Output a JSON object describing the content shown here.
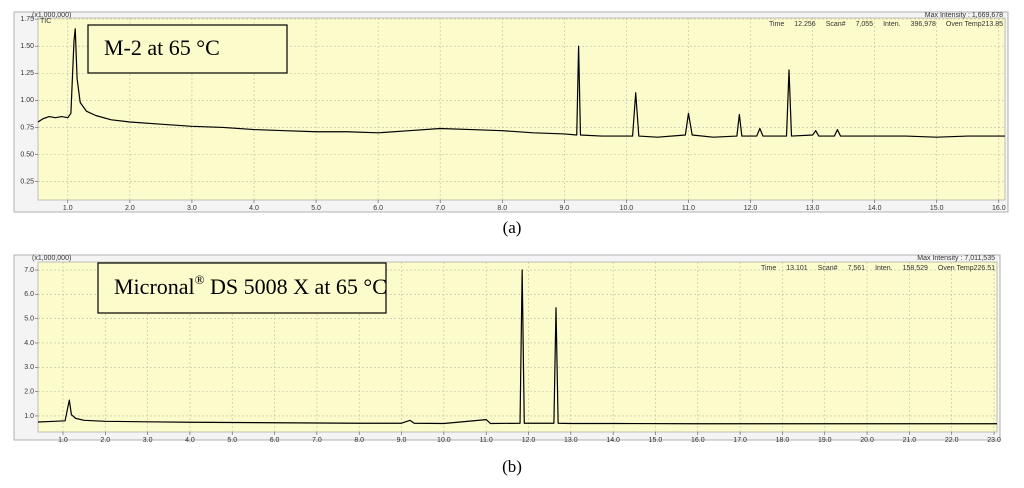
{
  "chart_data": [
    {
      "type": "line",
      "y_multiplier": "(x1,000,000)",
      "signal": "TIC",
      "max_intensity": "Max Intensity : 1,669,678",
      "status": [
        "Time",
        "12.256",
        "Scan#",
        "7,055",
        "Inten.",
        "396,978",
        "Oven Temp213.85"
      ],
      "annotation": [
        "M-2 at 65 °C"
      ],
      "caption": "(a)",
      "color": "#000000",
      "grid": true,
      "xlim": [
        0.52,
        16.1
      ],
      "ylim": [
        0.08,
        1.76
      ],
      "xticks": [
        {
          "value": 1,
          "label": "1.0"
        },
        {
          "value": 2,
          "label": "2.0"
        },
        {
          "value": 3,
          "label": "3.0"
        },
        {
          "value": 4,
          "label": "4.0"
        },
        {
          "value": 5,
          "label": "5.0"
        },
        {
          "value": 6,
          "label": "6.0"
        },
        {
          "value": 7,
          "label": "7.0"
        },
        {
          "value": 8,
          "label": "8.0"
        },
        {
          "value": 9,
          "label": "9.0"
        },
        {
          "value": 10,
          "label": "10.0"
        },
        {
          "value": 11,
          "label": "11.0"
        },
        {
          "value": 12,
          "label": "12.0"
        },
        {
          "value": 13,
          "label": "13.0"
        },
        {
          "value": 14,
          "label": "14.0"
        },
        {
          "value": 15,
          "label": "15.0"
        },
        {
          "value": 16,
          "label": "16.0"
        }
      ],
      "yticks": [
        0.25,
        {
          "value": 0.5,
          "label": "0.50"
        },
        0.75,
        {
          "value": 1,
          "label": "1.00"
        },
        1.25,
        {
          "value": 1.5,
          "label": "1.50"
        },
        1.75
      ],
      "x": [
        0.52,
        0.6,
        0.7,
        0.8,
        0.9,
        1.0,
        1.05,
        1.1,
        1.12,
        1.15,
        1.2,
        1.3,
        1.45,
        1.7,
        2.0,
        2.5,
        3.0,
        3.5,
        4.0,
        4.5,
        5.0,
        5.5,
        6.0,
        6.5,
        7.0,
        7.5,
        8.0,
        8.5,
        9.0,
        9.2,
        9.23,
        9.26,
        9.6,
        10.1,
        10.15,
        10.2,
        10.5,
        10.95,
        11.0,
        11.06,
        11.4,
        11.78,
        11.82,
        11.86,
        12.1,
        12.15,
        12.2,
        12.58,
        12.62,
        12.66,
        13.0,
        13.05,
        13.1,
        13.35,
        13.4,
        13.45,
        14.0,
        14.5,
        15.0,
        15.5,
        16.1
      ],
      "values": [
        0.8,
        0.83,
        0.85,
        0.84,
        0.85,
        0.84,
        0.88,
        1.55,
        1.66,
        1.2,
        0.98,
        0.9,
        0.86,
        0.82,
        0.8,
        0.78,
        0.76,
        0.75,
        0.73,
        0.72,
        0.71,
        0.71,
        0.7,
        0.72,
        0.74,
        0.73,
        0.72,
        0.7,
        0.69,
        0.68,
        1.5,
        0.68,
        0.67,
        0.67,
        1.07,
        0.67,
        0.66,
        0.68,
        0.88,
        0.68,
        0.66,
        0.67,
        0.87,
        0.67,
        0.67,
        0.74,
        0.67,
        0.67,
        1.28,
        0.67,
        0.68,
        0.72,
        0.67,
        0.67,
        0.73,
        0.67,
        0.67,
        0.67,
        0.66,
        0.67,
        0.67
      ]
    },
    {
      "type": "line",
      "y_multiplier": "(x1,000,000)",
      "max_intensity": "Max Intensity : 7,011,535",
      "status": [
        "Time",
        "13.101",
        "Scan#",
        "7,561",
        "Inten.",
        "158,529",
        "Oven Temp226.51"
      ],
      "annotation": [
        "Micronal",
        "®",
        " DS 5008 X at 65 °C"
      ],
      "caption": "(b)",
      "color": "#000000",
      "grid": true,
      "xlim": [
        0.41,
        23.07
      ],
      "ylim": [
        0.34,
        7.33
      ],
      "xticks": [
        {
          "value": 1,
          "label": "1.0"
        },
        {
          "value": 2,
          "label": "2.0"
        },
        {
          "value": 3,
          "label": "3.0"
        },
        {
          "value": 4,
          "label": "4.0"
        },
        {
          "value": 5,
          "label": "5.0"
        },
        {
          "value": 6,
          "label": "6.0"
        },
        {
          "value": 7,
          "label": "7.0"
        },
        {
          "value": 8,
          "label": "8.0"
        },
        {
          "value": 9,
          "label": "9.0"
        },
        {
          "value": 10,
          "label": "10.0"
        },
        {
          "value": 11,
          "label": "11.0"
        },
        {
          "value": 12,
          "label": "12.0"
        },
        {
          "value": 13,
          "label": "13.0"
        },
        {
          "value": 14,
          "label": "14.0"
        },
        {
          "value": 15,
          "label": "15.0"
        },
        {
          "value": 16,
          "label": "16.0"
        },
        {
          "value": 17,
          "label": "17.0"
        },
        {
          "value": 18,
          "label": "18.0"
        },
        {
          "value": 19,
          "label": "19.0"
        },
        {
          "value": 20,
          "label": "20.0"
        },
        {
          "value": 21,
          "label": "21.0"
        },
        {
          "value": 22,
          "label": "22.0"
        },
        {
          "value": 23,
          "label": "23.0"
        }
      ],
      "yticks": [
        {
          "value": 1,
          "label": "1.0"
        },
        {
          "value": 2,
          "label": "2.0"
        },
        {
          "value": 3,
          "label": "3.0"
        },
        {
          "value": 4,
          "label": "4.0"
        },
        {
          "value": 5,
          "label": "5.0"
        },
        {
          "value": 6,
          "label": "6.0"
        },
        {
          "value": 7,
          "label": "7.0"
        }
      ],
      "x": [
        0.41,
        0.8,
        1.05,
        1.12,
        1.15,
        1.2,
        1.3,
        1.5,
        2.0,
        3.0,
        4.0,
        5.0,
        6.0,
        7.0,
        8.0,
        9.0,
        9.2,
        9.3,
        10.0,
        11.0,
        11.1,
        11.8,
        11.85,
        11.9,
        12.6,
        12.65,
        12.7,
        13.0,
        14.0,
        16.0,
        18.0,
        20.0,
        22.0,
        23.07
      ],
      "values": [
        0.75,
        0.78,
        0.8,
        1.4,
        1.65,
        1.05,
        0.9,
        0.82,
        0.78,
        0.76,
        0.74,
        0.73,
        0.72,
        0.71,
        0.7,
        0.7,
        0.82,
        0.7,
        0.69,
        0.85,
        0.69,
        0.7,
        7.0,
        0.7,
        0.7,
        5.45,
        0.7,
        0.69,
        0.69,
        0.68,
        0.68,
        0.68,
        0.68,
        0.68
      ]
    }
  ]
}
